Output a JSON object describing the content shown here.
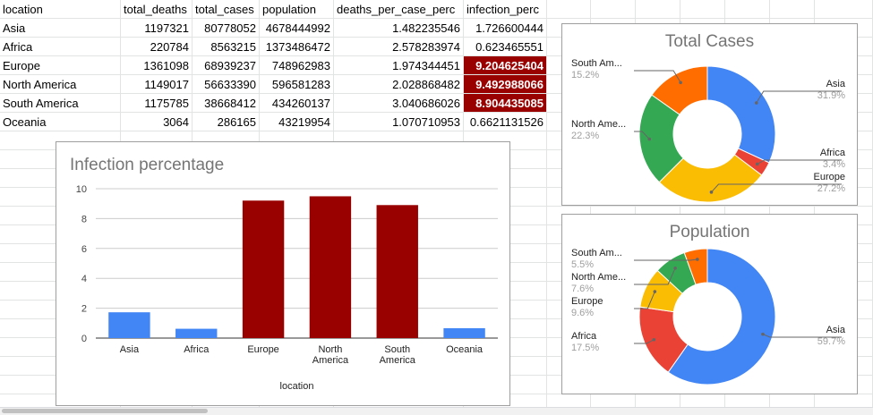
{
  "sheet": {
    "headers": [
      "location",
      "total_deaths",
      "total_cases",
      "population",
      "deaths_per_case_perc",
      "infection_perc"
    ],
    "rows": [
      [
        "Asia",
        "1197321",
        "80778052",
        "4678444992",
        "1.482235546",
        "1.726600444"
      ],
      [
        "Africa",
        "220784",
        "8563215",
        "1373486472",
        "2.578283974",
        "0.623465551"
      ],
      [
        "Europe",
        "1361098",
        "68939237",
        "748962983",
        "1.974344451",
        "9.204625404"
      ],
      [
        "North America",
        "1149017",
        "56633390",
        "596581283",
        "2.028868482",
        "9.492988066"
      ],
      [
        "South America",
        "1175785",
        "38668412",
        "434260137",
        "3.040686026",
        "8.904435085"
      ],
      [
        "Oceania",
        "3064",
        "286165",
        "43219954",
        "1.070710953",
        "0.6621131526"
      ]
    ],
    "highlight_color": "#990000"
  },
  "bar_chart": {
    "title": "Infection percentage",
    "chart_data": {
      "type": "bar",
      "categories": [
        "Asia",
        "Africa",
        "Europe",
        "North America",
        "South America",
        "Oceania"
      ],
      "category_labels": [
        [
          "Asia"
        ],
        [
          "Africa"
        ],
        [
          "Europe"
        ],
        [
          "North",
          "America"
        ],
        [
          "South",
          "America"
        ],
        [
          "Oceania"
        ]
      ],
      "values": [
        1.7266,
        0.6235,
        9.2046,
        9.493,
        8.9044,
        0.6621
      ],
      "colors": [
        "#4285f4",
        "#4285f4",
        "#990000",
        "#990000",
        "#990000",
        "#4285f4"
      ],
      "xlabel": "location",
      "ylabel": "",
      "ylim": [
        0,
        10
      ],
      "yticks": [
        0,
        2,
        4,
        6,
        8,
        10
      ],
      "grid": true
    }
  },
  "pie_cases": {
    "title": "Total Cases",
    "chart_data": {
      "type": "pie",
      "donut": true,
      "slices": [
        {
          "label": "Asia",
          "value": 31.9,
          "display": "31.9%",
          "color": "#4285f4"
        },
        {
          "label": "Africa",
          "value": 3.4,
          "display": "3.4%",
          "color": "#ea4335"
        },
        {
          "label": "Europe",
          "value": 27.2,
          "display": "27.2%",
          "color": "#fbbc04"
        },
        {
          "label": "North Ame...",
          "value": 22.3,
          "display": "22.3%",
          "color": "#34a853"
        },
        {
          "label": "South Am...",
          "value": 15.2,
          "display": "15.2%",
          "color": "#ff6d01"
        }
      ]
    }
  },
  "pie_population": {
    "title": "Population",
    "chart_data": {
      "type": "pie",
      "donut": true,
      "slices": [
        {
          "label": "Asia",
          "value": 59.7,
          "display": "59.7%",
          "color": "#4285f4"
        },
        {
          "label": "Africa",
          "value": 17.5,
          "display": "17.5%",
          "color": "#ea4335"
        },
        {
          "label": "Europe",
          "value": 9.6,
          "display": "9.6%",
          "color": "#fbbc04"
        },
        {
          "label": "North Ame...",
          "value": 7.6,
          "display": "7.6%",
          "color": "#34a853"
        },
        {
          "label": "South Am...",
          "value": 5.5,
          "display": "5.5%",
          "color": "#ff6d01"
        }
      ]
    }
  }
}
